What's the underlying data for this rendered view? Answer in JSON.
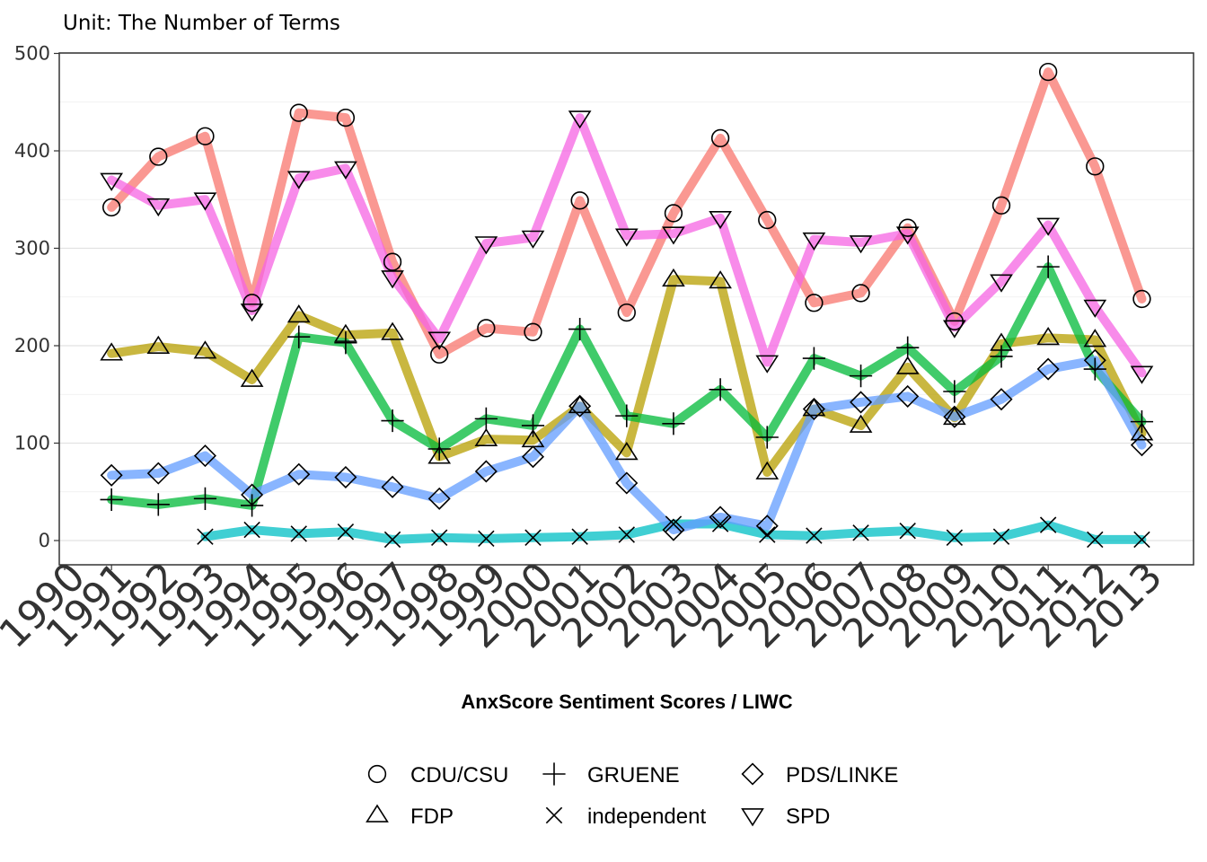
{
  "chart_data": {
    "type": "line",
    "subtitle": "Unit: The Number of Terms",
    "xlabel": "AnxScore Sentiment Scores / LIWC",
    "ylabel": "",
    "xlim": [
      1990,
      2013
    ],
    "ylim": [
      -20,
      500
    ],
    "yticks": [
      0,
      100,
      200,
      300,
      400,
      500
    ],
    "x_tick_labels": [
      "1990",
      "1991",
      "1992",
      "1993",
      "1994",
      "1995",
      "1996",
      "1997",
      "1998",
      "1999",
      "2000",
      "2001",
      "2002",
      "2003",
      "2004",
      "2005",
      "2006",
      "2007",
      "2008",
      "2009",
      "2010",
      "2011",
      "2012",
      "2013"
    ],
    "grid": true,
    "legend_position": "bottom",
    "series": [
      {
        "name": "CDU/CSU",
        "marker": "circle",
        "color": "#F8766D",
        "x": [
          1991,
          1992,
          1993,
          1994,
          1995,
          1996,
          1997,
          1998,
          1999,
          2000,
          2001,
          2002,
          2003,
          2004,
          2005,
          2006,
          2007,
          2008,
          2009,
          2010,
          2011,
          2012,
          2013
        ],
        "values": [
          342,
          394,
          415,
          244,
          439,
          434,
          286,
          191,
          218,
          214,
          349,
          234,
          336,
          413,
          329,
          244,
          254,
          321,
          225,
          344,
          481,
          384,
          248
        ]
      },
      {
        "name": "FDP",
        "marker": "triangle-up",
        "color": "#B79F00",
        "x": [
          1991,
          1992,
          1993,
          1994,
          1995,
          1996,
          1997,
          1998,
          1999,
          2000,
          2001,
          2002,
          2003,
          2004,
          2005,
          2006,
          2007,
          2008,
          2009,
          2010,
          2011,
          2012,
          2013
        ],
        "values": [
          192,
          199,
          194,
          165,
          231,
          211,
          213,
          86,
          104,
          103,
          138,
          90,
          268,
          266,
          70,
          135,
          118,
          178,
          126,
          202,
          208,
          206,
          110
        ]
      },
      {
        "name": "GRUENE",
        "marker": "plus",
        "color": "#00BA38",
        "x": [
          1991,
          1992,
          1993,
          1994,
          1995,
          1996,
          1997,
          1998,
          1999,
          2000,
          2001,
          2002,
          2003,
          2004,
          2005,
          2006,
          2007,
          2008,
          2009,
          2010,
          2011,
          2012,
          2013
        ],
        "values": [
          42,
          37,
          43,
          36,
          209,
          203,
          123,
          94,
          125,
          118,
          217,
          128,
          120,
          155,
          106,
          187,
          169,
          198,
          153,
          189,
          281,
          176,
          122
        ]
      },
      {
        "name": "independent",
        "marker": "cross",
        "color": "#00BFC4",
        "x": [
          1993,
          1994,
          1995,
          1996,
          1997,
          1998,
          1999,
          2000,
          2001,
          2002,
          2003,
          2004,
          2005,
          2006,
          2007,
          2008,
          2009,
          2010,
          2011,
          2012,
          2013
        ],
        "values": [
          4,
          11,
          7,
          9,
          1,
          3,
          2,
          3,
          4,
          6,
          17,
          17,
          6,
          5,
          8,
          10,
          3,
          4,
          16,
          1,
          1
        ]
      },
      {
        "name": "PDS/LINKE",
        "marker": "diamond",
        "color": "#619CFF",
        "x": [
          1991,
          1992,
          1993,
          1994,
          1995,
          1996,
          1997,
          1998,
          1999,
          2000,
          2001,
          2002,
          2003,
          2004,
          2005,
          2006,
          2007,
          2008,
          2009,
          2010,
          2011,
          2012,
          2013
        ],
        "values": [
          67,
          69,
          87,
          47,
          68,
          65,
          55,
          43,
          71,
          86,
          138,
          59,
          11,
          24,
          15,
          135,
          142,
          148,
          127,
          145,
          176,
          185,
          98
        ]
      },
      {
        "name": "SPD",
        "marker": "triangle-down",
        "color": "#F564E3",
        "x": [
          1991,
          1992,
          1993,
          1994,
          1995,
          1996,
          1997,
          1998,
          1999,
          2000,
          2001,
          2002,
          2003,
          2004,
          2005,
          2006,
          2007,
          2008,
          2009,
          2010,
          2011,
          2012,
          2013
        ],
        "values": [
          370,
          344,
          350,
          236,
          372,
          382,
          270,
          207,
          305,
          311,
          434,
          313,
          315,
          331,
          183,
          309,
          306,
          315,
          219,
          266,
          324,
          240,
          172
        ]
      }
    ]
  }
}
